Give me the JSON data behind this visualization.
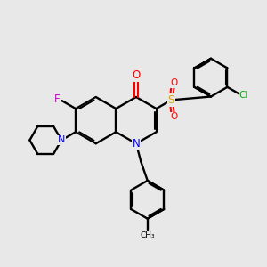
{
  "background_color": "#e8e8e8",
  "bond_color": "#000000",
  "atom_colors": {
    "N": "#0000ff",
    "O": "#ff0000",
    "F": "#cc00cc",
    "S": "#ddaa00",
    "Cl": "#00aa00",
    "C": "#000000"
  },
  "figsize": [
    3.0,
    3.0
  ],
  "dpi": 100
}
